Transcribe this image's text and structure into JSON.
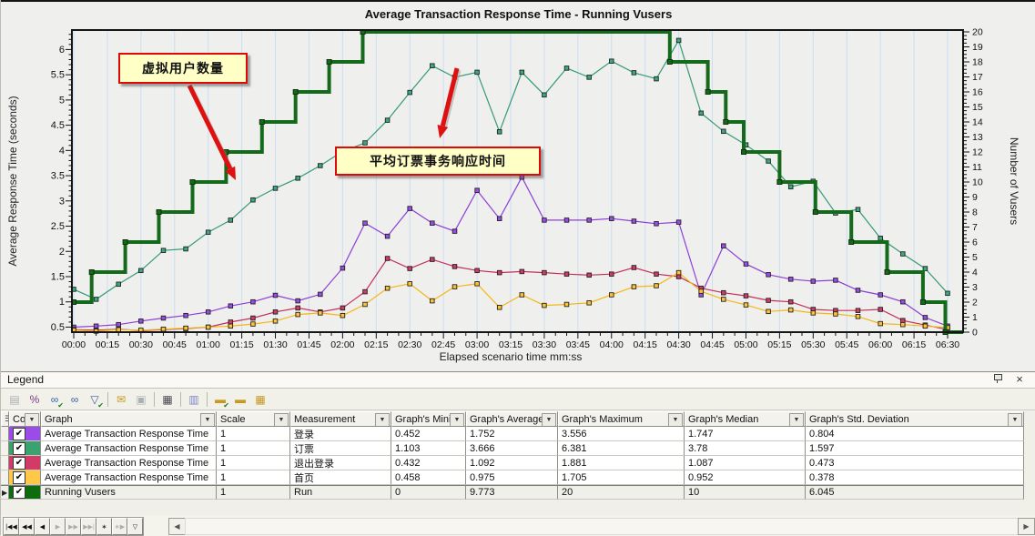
{
  "chart_data": {
    "type": "line",
    "title": "Average Transaction Response Time - Running Vusers",
    "xlabel": "Elapsed scenario time mm:ss",
    "ylabel_left": "Average Response Time (seconds)",
    "ylabel_right": "Number of Vusers",
    "x_ticks": [
      "00:00",
      "00:15",
      "00:30",
      "00:45",
      "01:00",
      "01:15",
      "01:30",
      "01:45",
      "02:00",
      "02:15",
      "02:30",
      "02:45",
      "03:00",
      "03:15",
      "03:30",
      "03:45",
      "04:00",
      "04:15",
      "04:30",
      "04:45",
      "05:00",
      "05:15",
      "05:30",
      "05:45",
      "06:00",
      "06:15",
      "06:30"
    ],
    "x_total_seconds": 390,
    "ylim_left": [
      0.4,
      6.35
    ],
    "yticks_left": [
      "0.5",
      "1",
      "1.5",
      "2",
      "2.5",
      "3",
      "3.5",
      "4",
      "4.5",
      "5",
      "5.5",
      "6"
    ],
    "ylim_right": [
      0,
      20
    ],
    "yticks_right": [
      "0",
      "1",
      "2",
      "3",
      "4",
      "5",
      "6",
      "7",
      "8",
      "9",
      "10",
      "11",
      "12",
      "13",
      "14",
      "15",
      "16",
      "17",
      "18",
      "19",
      "20"
    ],
    "grid": "vertical",
    "gridline_color": "#CBDEF2",
    "legend_position": "bottom-table",
    "series": [
      {
        "name": "登录",
        "axis": "left",
        "color": "#8B3FD9",
        "marker": "#9B4BE8",
        "x_step_s": 10,
        "values": [
          0.5,
          0.52,
          0.55,
          0.62,
          0.68,
          0.73,
          0.8,
          0.92,
          1.0,
          1.13,
          1.02,
          1.15,
          1.67,
          2.56,
          2.3,
          2.85,
          2.56,
          2.4,
          3.21,
          2.65,
          3.47,
          2.62,
          2.62,
          2.62,
          2.65,
          2.6,
          2.55,
          2.58,
          1.14,
          2.11,
          1.75,
          1.54,
          1.45,
          1.41,
          1.43,
          1.23,
          1.14,
          1.0,
          0.69,
          0.52
        ]
      },
      {
        "name": "订票",
        "axis": "left",
        "color": "#359A78",
        "marker": "#3AA980",
        "x_step_s": 10,
        "values": [
          1.25,
          1.05,
          1.35,
          1.62,
          2.02,
          2.05,
          2.38,
          2.62,
          3.02,
          3.25,
          3.45,
          3.7,
          3.98,
          4.15,
          4.6,
          5.15,
          5.68,
          5.45,
          5.55,
          4.37,
          5.55,
          5.1,
          5.63,
          5.45,
          5.77,
          5.54,
          5.42,
          6.18,
          4.74,
          4.38,
          4.11,
          3.79,
          3.28,
          3.39,
          2.76,
          2.83,
          2.26,
          1.95,
          1.66,
          1.17
        ]
      },
      {
        "name": "退出登录",
        "axis": "left",
        "color": "#C23058",
        "marker": "#D23A68",
        "x_step_s": 10,
        "values": [
          0.45,
          0.44,
          0.46,
          0.43,
          0.45,
          0.47,
          0.5,
          0.6,
          0.68,
          0.8,
          0.88,
          0.8,
          0.88,
          1.2,
          1.86,
          1.66,
          1.84,
          1.7,
          1.62,
          1.58,
          1.6,
          1.58,
          1.55,
          1.53,
          1.55,
          1.68,
          1.55,
          1.5,
          1.27,
          1.18,
          1.12,
          1.03,
          1.0,
          0.85,
          0.83,
          0.83,
          0.85,
          0.63,
          0.54,
          0.45
        ]
      },
      {
        "name": "首页",
        "axis": "left",
        "color": "#F2B816",
        "marker": "#FFC235",
        "x_step_s": 10,
        "values": [
          0.44,
          0.42,
          0.45,
          0.44,
          0.46,
          0.48,
          0.5,
          0.52,
          0.56,
          0.62,
          0.75,
          0.78,
          0.73,
          0.95,
          1.27,
          1.36,
          1.02,
          1.3,
          1.36,
          0.89,
          1.14,
          0.93,
          0.95,
          0.98,
          1.14,
          1.3,
          1.32,
          1.58,
          1.21,
          1.05,
          0.94,
          0.81,
          0.84,
          0.78,
          0.76,
          0.71,
          0.57,
          0.55,
          0.52,
          0.49
        ]
      },
      {
        "name": "Running Vusers",
        "axis": "right",
        "type": "step",
        "color": "#15691A",
        "marker": "#15691A",
        "points": [
          [
            0,
            2
          ],
          [
            8,
            2
          ],
          [
            8,
            4
          ],
          [
            23,
            4
          ],
          [
            23,
            6
          ],
          [
            38,
            6
          ],
          [
            38,
            8
          ],
          [
            53,
            8
          ],
          [
            53,
            10
          ],
          [
            68,
            10
          ],
          [
            68,
            12
          ],
          [
            84,
            12
          ],
          [
            84,
            14
          ],
          [
            99,
            14
          ],
          [
            99,
            16
          ],
          [
            114,
            16
          ],
          [
            114,
            18
          ],
          [
            129,
            18
          ],
          [
            129,
            20
          ],
          [
            266,
            20
          ],
          [
            266,
            18
          ],
          [
            283,
            18
          ],
          [
            283,
            16
          ],
          [
            291,
            16
          ],
          [
            291,
            14
          ],
          [
            299,
            14
          ],
          [
            299,
            12
          ],
          [
            315,
            12
          ],
          [
            315,
            10
          ],
          [
            331,
            10
          ],
          [
            331,
            8
          ],
          [
            347,
            8
          ],
          [
            347,
            6
          ],
          [
            363,
            6
          ],
          [
            363,
            4
          ],
          [
            379,
            4
          ],
          [
            379,
            2
          ],
          [
            389,
            2
          ],
          [
            389,
            0
          ],
          [
            397,
            0
          ]
        ]
      }
    ],
    "annotations": [
      {
        "text": "虚拟用户数量",
        "arrow_from": [
          207,
          92
        ],
        "arrow_tip": [
          258,
          196
        ]
      },
      {
        "text": "平均订票事务响应时间",
        "arrow_from": [
          501,
          73
        ],
        "arrow_tip": [
          482,
          150
        ]
      }
    ],
    "annotation_style": {
      "bg": "#FFFFC6",
      "border": "#DE0A0A",
      "arrow": "#DE1010"
    }
  },
  "legend": {
    "panel_title": "Legend",
    "pin_button": "pin",
    "close_button": "×",
    "toolbar": [
      {
        "name": "hide-graph-icon",
        "glyph": "▤",
        "color": "#A9AEB4",
        "disabled": true,
        "check": false,
        "sep_after": false
      },
      {
        "name": "configure-measurements-icon",
        "glyph": "%",
        "color": "#7A3A8A",
        "disabled": false,
        "check": false,
        "sep_after": false
      },
      {
        "name": "show-measurements-icon",
        "glyph": "∞",
        "color": "#2E5FA3",
        "disabled": false,
        "check": true,
        "sep_after": false
      },
      {
        "name": "view-measurements-icon",
        "glyph": "∞",
        "color": "#2E5FA3",
        "disabled": false,
        "check": false,
        "sep_after": false
      },
      {
        "name": "filter-measurements-icon",
        "glyph": "▽",
        "color": "#3A5FA0",
        "disabled": false,
        "check": true,
        "sep_after": true
      },
      {
        "name": "open-new-graph-icon",
        "glyph": "✉",
        "color": "#C79A1F",
        "disabled": false,
        "check": false,
        "sep_after": false
      },
      {
        "name": "add-to-graph-icon",
        "glyph": "▣",
        "color": "#ABB0B6",
        "disabled": true,
        "check": false,
        "sep_after": true
      },
      {
        "name": "animated-graph-icon",
        "glyph": "▦",
        "color": "#4A4A55",
        "disabled": false,
        "check": false,
        "sep_after": true
      },
      {
        "name": "auto-size-columns-icon",
        "glyph": "▥",
        "color": "#7D86C8",
        "disabled": false,
        "check": false,
        "sep_after": true
      },
      {
        "name": "show-ruler-icon",
        "glyph": "▬",
        "color": "#C79A1F",
        "disabled": false,
        "check": true,
        "sep_after": false
      },
      {
        "name": "measure-icon",
        "glyph": "▬",
        "color": "#C79A1F",
        "disabled": false,
        "check": false,
        "sep_after": false
      },
      {
        "name": "grid-settings-icon",
        "glyph": "▦",
        "color": "#C79A1F",
        "disabled": false,
        "check": false,
        "sep_after": false
      }
    ],
    "table": {
      "columns": [
        "Col",
        "Graph",
        "Scale",
        "Measurement",
        "Graph's Mini",
        "Graph's Average",
        "Graph's Maximum",
        "Graph's Median",
        "Graph's Std. Deviation"
      ],
      "rows": [
        {
          "color": "#9B4BE8",
          "checked": true,
          "selected": false,
          "graph": "Average Transaction Response Time",
          "scale": "1",
          "measurement": "登录",
          "min": "0.452",
          "avg": "1.752",
          "max": "3.556",
          "median": "1.747",
          "std": "0.804"
        },
        {
          "color": "#3AA26E",
          "checked": true,
          "selected": false,
          "graph": "Average Transaction Response Time",
          "scale": "1",
          "measurement": "订票",
          "min": "1.103",
          "avg": "3.666",
          "max": "6.381",
          "median": "3.78",
          "std": "1.597"
        },
        {
          "color": "#D23A68",
          "checked": true,
          "selected": false,
          "graph": "Average Transaction Response Time",
          "scale": "1",
          "measurement": "退出登录",
          "min": "0.432",
          "avg": "1.092",
          "max": "1.881",
          "median": "1.087",
          "std": "0.473"
        },
        {
          "color": "#FFC846",
          "checked": true,
          "selected": false,
          "graph": "Average Transaction Response Time",
          "scale": "1",
          "measurement": "首页",
          "min": "0.458",
          "avg": "0.975",
          "max": "1.705",
          "median": "0.952",
          "std": "0.378"
        },
        {
          "color": "#0E6B0E",
          "checked": true,
          "selected": true,
          "graph": "Running Vusers",
          "scale": "1",
          "measurement": "Run",
          "min": "0",
          "avg": "9.773",
          "max": "20",
          "median": "10",
          "std": "6.045"
        }
      ]
    }
  },
  "navigator": {
    "buttons": [
      {
        "name": "first-record-button",
        "glyph": "|◀◀",
        "enabled": true
      },
      {
        "name": "fast-rewind-button",
        "glyph": "◀◀",
        "enabled": true
      },
      {
        "name": "prior-record-button",
        "glyph": "◀",
        "enabled": true
      },
      {
        "name": "next-record-button",
        "glyph": "▶",
        "enabled": false
      },
      {
        "name": "fast-forward-button",
        "glyph": "▶▶",
        "enabled": false
      },
      {
        "name": "last-record-button",
        "glyph": "▶▶|",
        "enabled": false
      },
      {
        "name": "insert-record-button",
        "glyph": "∗",
        "enabled": true
      },
      {
        "name": "append-record-button",
        "glyph": "∗▶",
        "enabled": false
      },
      {
        "name": "filter-records-button",
        "glyph": "▽",
        "enabled": true
      }
    ],
    "hscroll_left": "◀",
    "hscroll_right": "▶"
  }
}
